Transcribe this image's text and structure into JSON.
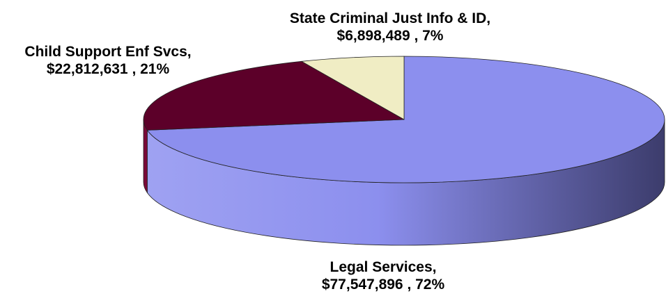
{
  "chart_data": {
    "type": "pie",
    "style": "3d",
    "start_angle_deg": 90,
    "direction": "clockwise",
    "slices": [
      {
        "name": "Legal Services",
        "value": 77547896,
        "value_label": "$77,547,896",
        "percent_label": "72%",
        "color": "#8C8FEE",
        "side_light": "#9FA2F2",
        "side_dark": "#3C3C6C"
      },
      {
        "name": "Child Support Enf Svcs",
        "value": 22812631,
        "value_label": "$22,812,631",
        "percent_label": "21%",
        "color": "#5C0029",
        "side_light": "#7A0A38",
        "side_dark": "#3A0019"
      },
      {
        "name": "State Criminal Just Info & ID",
        "value": 6898489,
        "value_label": "$6,898,489",
        "percent_label": "7%",
        "color": "#F0EDC4",
        "side_light": "#F6F3D6",
        "side_dark": "#CFCB9A"
      }
    ],
    "labels": {
      "state": {
        "line1": "State Criminal Just Info & ID,",
        "line2": "$6,898,489 , 7%"
      },
      "child": {
        "line1": "Child Support Enf Svcs,",
        "line2": "$22,812,631 , 21%"
      },
      "legal": {
        "line1": "Legal Services,",
        "line2": "$77,547,896 , 72%"
      }
    }
  }
}
